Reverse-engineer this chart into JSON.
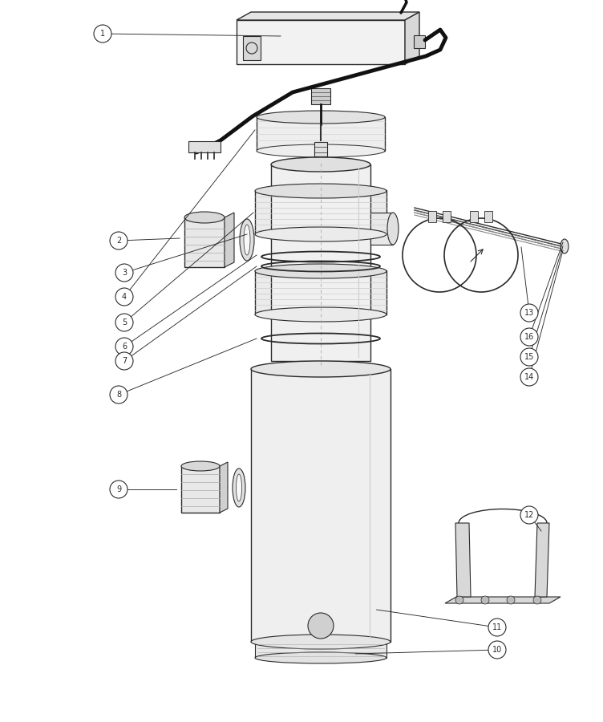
{
  "bg": "#ffffff",
  "lc": "#2a2a2a",
  "fig_w": 7.52,
  "fig_h": 9.0,
  "dpi": 100
}
